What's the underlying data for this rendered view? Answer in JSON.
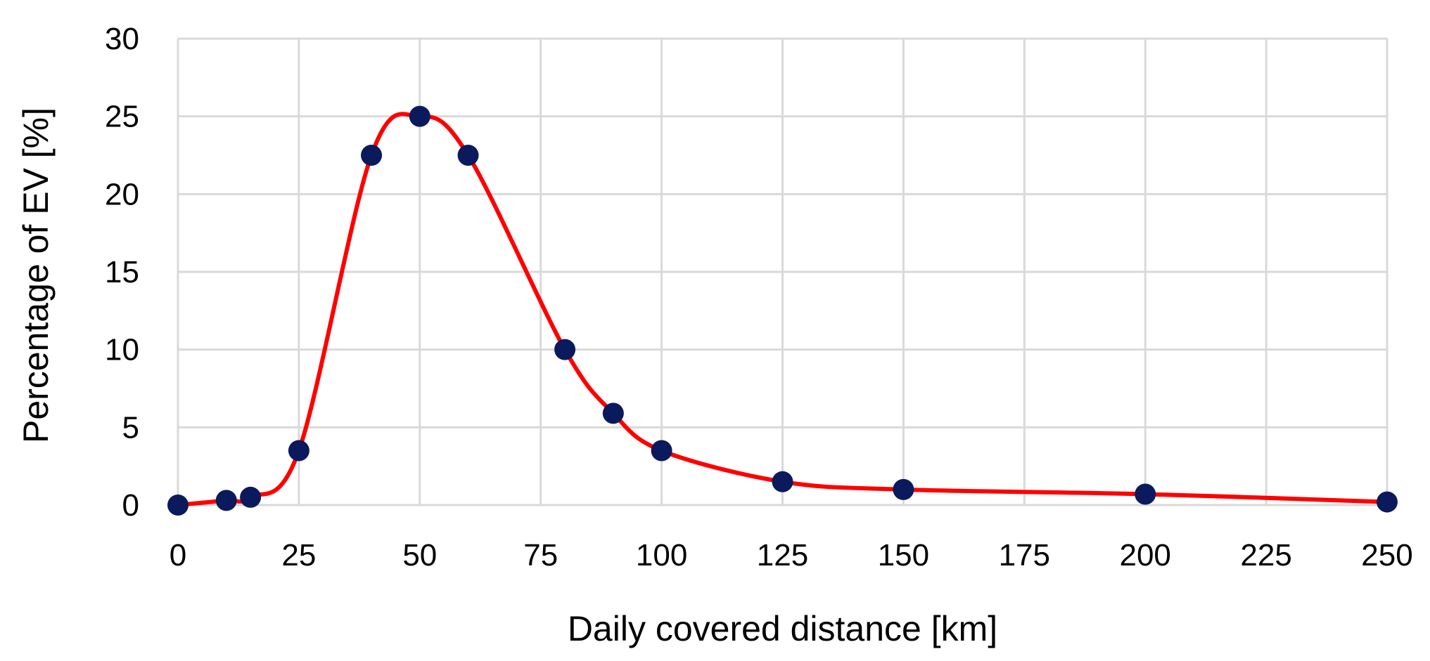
{
  "chart_data": {
    "type": "line",
    "title": "",
    "xlabel": "Daily covered distance [km]",
    "ylabel": "Percentage of EV [%]",
    "xlim": [
      0,
      250
    ],
    "ylim": [
      0,
      30
    ],
    "x_ticks": [
      0,
      25,
      50,
      75,
      100,
      125,
      150,
      175,
      200,
      225,
      250
    ],
    "y_ticks": [
      0,
      5,
      10,
      15,
      20,
      25,
      30
    ],
    "grid": true,
    "legend": "none",
    "smooth": true,
    "colors": {
      "line": "#ff0000",
      "marker": "#0b1a5c",
      "grid": "#d9d9d9"
    },
    "series": [
      {
        "x": [
          0,
          10,
          15,
          25,
          40,
          50,
          60,
          80,
          90,
          100,
          125,
          150,
          200,
          250
        ],
        "y": [
          0,
          0.3,
          0.5,
          3.5,
          22.5,
          25,
          22.5,
          10,
          5.9,
          3.5,
          1.5,
          1.0,
          0.7,
          0.2
        ]
      }
    ]
  }
}
